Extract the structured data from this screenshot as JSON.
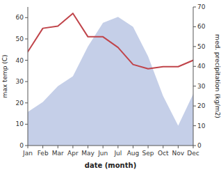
{
  "chart_data": {
    "type": "line",
    "xlabel": "date (month)",
    "ylabel": "max temp (C)",
    "y2label": "med. precipitation (kg/m2)",
    "categories": [
      "Jan",
      "Feb",
      "Mar",
      "Apr",
      "May",
      "Jun",
      "Jul",
      "Aug",
      "Sep",
      "Oct",
      "Nov",
      "Dec"
    ],
    "series": [
      {
        "type": "area",
        "axis": "y2",
        "color": "#c5cfe8",
        "values": [
          17,
          22,
          30,
          35,
          50,
          62,
          65,
          60,
          45,
          25,
          10,
          26
        ]
      },
      {
        "type": "line",
        "color": "#c0444a",
        "values": [
          44,
          55,
          56,
          62,
          51,
          51,
          46,
          38,
          36,
          37,
          37,
          40
        ]
      }
    ],
    "ylim": [
      0,
      65
    ],
    "yticks": [
      0,
      10,
      20,
      30,
      40,
      50,
      60
    ],
    "y2lim": [
      0,
      70
    ],
    "y2ticks": [
      0,
      10,
      20,
      30,
      40,
      50,
      60,
      70
    ]
  }
}
